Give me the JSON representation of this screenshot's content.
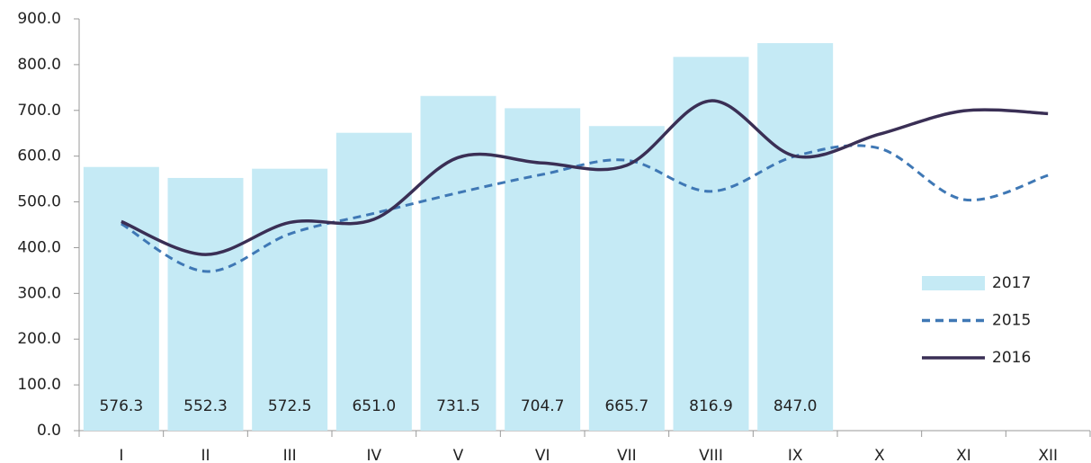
{
  "chart_data": {
    "type": "combo",
    "categories": [
      "I",
      "II",
      "III",
      "IV",
      "V",
      "VI",
      "VII",
      "VIII",
      "IX",
      "X",
      "XI",
      "XII"
    ],
    "series": [
      {
        "name": "2017",
        "type": "bar",
        "color": "#c5eaf5",
        "values": [
          576.3,
          552.3,
          572.5,
          651.0,
          731.5,
          704.7,
          665.7,
          816.9,
          847.0,
          null,
          null,
          null
        ],
        "value_labels": [
          "576.3",
          "552.3",
          "572.5",
          "651.0",
          "731.5",
          "704.7",
          "665.7",
          "816.9",
          "847.0",
          null,
          null,
          null
        ]
      },
      {
        "name": "2015",
        "type": "line",
        "dashed": true,
        "color": "#3f78b5",
        "values": [
          452,
          348,
          430,
          475,
          520,
          560,
          591,
          523,
          600,
          617,
          505,
          558
        ]
      },
      {
        "name": "2016",
        "type": "line",
        "dashed": false,
        "color": "#3a2f55",
        "values": [
          457,
          385,
          455,
          462,
          597,
          585,
          580,
          721,
          600,
          648,
          699,
          693
        ]
      }
    ],
    "ylim": [
      0,
      900
    ],
    "yticks": [
      {
        "value": 0,
        "label": "0.0"
      },
      {
        "value": 100,
        "label": "100.0"
      },
      {
        "value": 200,
        "label": "200.0"
      },
      {
        "value": 300,
        "label": "300.0"
      },
      {
        "value": 400,
        "label": "400.0"
      },
      {
        "value": 500,
        "label": "500.0"
      },
      {
        "value": 600,
        "label": "600.0"
      },
      {
        "value": 700,
        "label": "700.0"
      },
      {
        "value": 800,
        "label": "800.0"
      },
      {
        "value": 900,
        "label": "900.0"
      }
    ],
    "grid": false,
    "legend": "right"
  }
}
